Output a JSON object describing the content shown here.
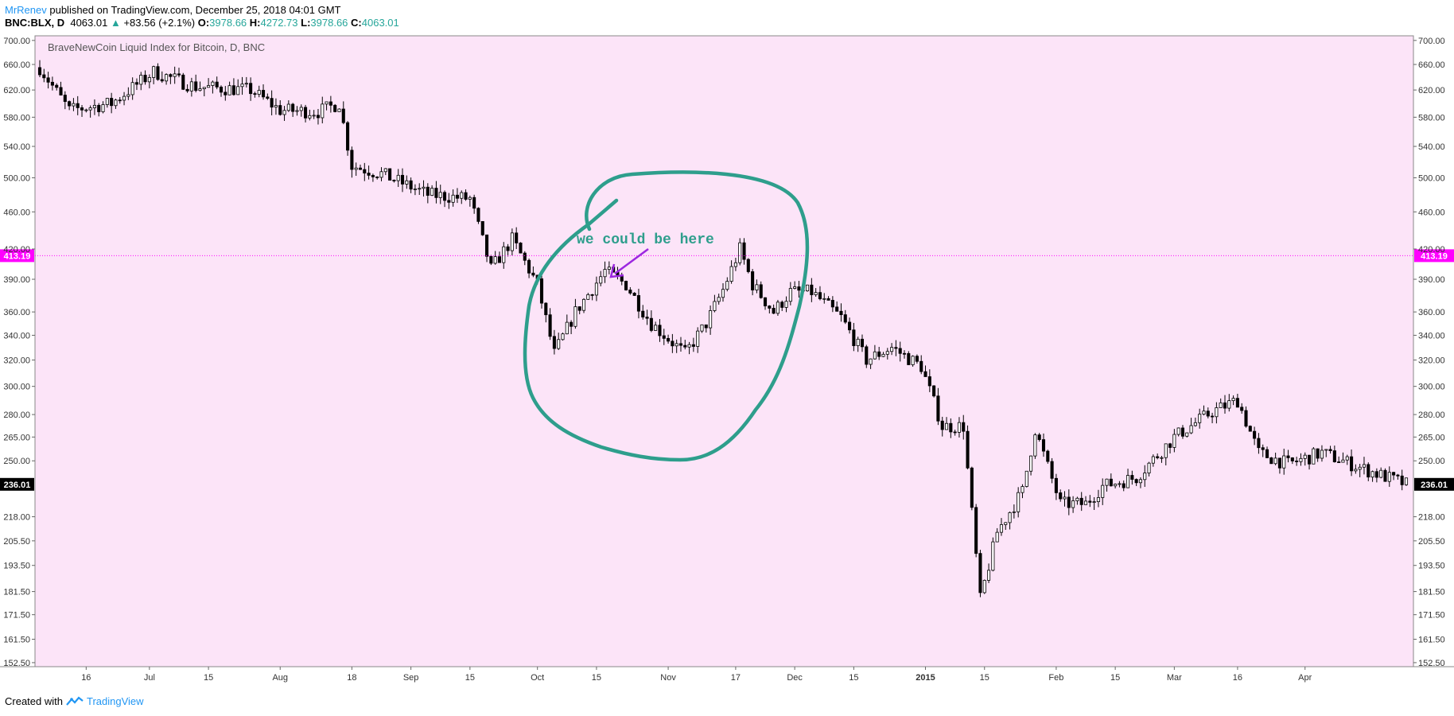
{
  "header": {
    "author": "MrRenev",
    "published_text": " published on TradingView.com, December 25, 2018 04:01 GMT",
    "symbol": "BNC:BLX, D",
    "last": "4063.01",
    "change_arrow": "▲",
    "change": "+83.56 (+2.1%)",
    "open_label": "O:",
    "open": "3978.66",
    "high_label": "H:",
    "high": "4272.73",
    "low_label": "L:",
    "low": "3978.66",
    "close_label": "C:",
    "close": "4063.01"
  },
  "footer": {
    "created_with": "Created with",
    "brand": "TradingView"
  },
  "colors": {
    "plot_background": "#fce4f8",
    "bull_candle": "#ffffff",
    "bear_candle": "#000000",
    "price_line": "#ff00ff",
    "annotation": "#2e9e8c",
    "arrow": "#9c27e0"
  },
  "chart_data": {
    "type": "candlestick",
    "title": "BraveNewCoin Liquid Index for Bitcoin, D, BNC",
    "y_scale": "log",
    "ylim": [
      151,
      708
    ],
    "y_ticks": [
      "152.50",
      "161.50",
      "171.50",
      "181.50",
      "193.50",
      "205.50",
      "218.00",
      "236.01",
      "250.00",
      "265.00",
      "280.00",
      "300.00",
      "320.00",
      "340.00",
      "360.00",
      "390.00",
      "413.19",
      "420.00",
      "460.00",
      "500.00",
      "540.00",
      "580.00",
      "620.00",
      "660.00",
      "700.00"
    ],
    "x_ticks": [
      "16",
      "Jul",
      "15",
      "Aug",
      "18",
      "Sep",
      "15",
      "Oct",
      "15",
      "Nov",
      "17",
      "Dec",
      "15",
      "2015",
      "15",
      "Feb",
      "15",
      "Mar",
      "16",
      "Apr"
    ],
    "x_range": [
      "2014-06-05",
      "2015-04-25"
    ],
    "price_line": {
      "label": "413.19",
      "value": 413.19
    },
    "last_price": {
      "label": "236.01",
      "value": 236.01
    },
    "annotation": "we could be here",
    "anchor_path": [
      [
        "2014-06-05",
        655
      ],
      [
        "2014-06-12",
        590
      ],
      [
        "2014-06-22",
        600
      ],
      [
        "2014-07-02",
        648
      ],
      [
        "2014-07-12",
        625
      ],
      [
        "2014-07-25",
        620
      ],
      [
        "2014-08-01",
        590
      ],
      [
        "2014-08-10",
        588
      ],
      [
        "2014-08-15",
        600
      ],
      [
        "2014-08-18",
        515
      ],
      [
        "2014-08-25",
        505
      ],
      [
        "2014-09-05",
        480
      ],
      [
        "2014-09-15",
        475
      ],
      [
        "2014-09-20",
        400
      ],
      [
        "2014-09-25",
        430
      ],
      [
        "2014-10-01",
        385
      ],
      [
        "2014-10-05",
        325
      ],
      [
        "2014-10-10",
        360
      ],
      [
        "2014-10-17",
        398
      ],
      [
        "2014-10-22",
        385
      ],
      [
        "2014-10-28",
        350
      ],
      [
        "2014-11-05",
        325
      ],
      [
        "2014-11-10",
        350
      ],
      [
        "2014-11-14",
        380
      ],
      [
        "2014-11-18",
        420
      ],
      [
        "2014-11-21",
        385
      ],
      [
        "2014-11-26",
        360
      ],
      [
        "2014-11-30",
        378
      ],
      [
        "2014-12-05",
        378
      ],
      [
        "2014-12-12",
        355
      ],
      [
        "2014-12-18",
        320
      ],
      [
        "2014-12-24",
        330
      ],
      [
        "2014-12-31",
        315
      ],
      [
        "2015-01-05",
        272
      ],
      [
        "2015-01-10",
        272
      ],
      [
        "2015-01-14",
        178
      ],
      [
        "2015-01-18",
        210
      ],
      [
        "2015-01-24",
        232
      ],
      [
        "2015-01-27",
        270
      ],
      [
        "2015-02-02",
        225
      ],
      [
        "2015-02-08",
        225
      ],
      [
        "2015-02-12",
        235
      ],
      [
        "2015-02-20",
        240
      ],
      [
        "2015-03-01",
        265
      ],
      [
        "2015-03-10",
        282
      ],
      [
        "2015-03-16",
        290
      ],
      [
        "2015-03-21",
        255
      ],
      [
        "2015-03-28",
        248
      ],
      [
        "2015-04-05",
        255
      ],
      [
        "2015-04-15",
        245
      ],
      [
        "2015-04-25",
        236
      ]
    ]
  }
}
